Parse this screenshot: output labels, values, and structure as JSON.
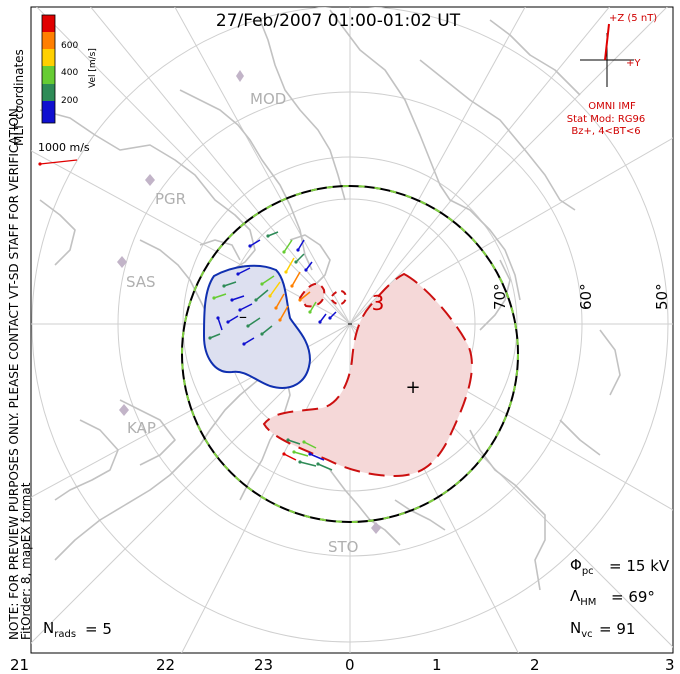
{
  "title": "27/Feb/2007 01:00-01:02 UT",
  "side_note_1": "NOTE: FOR PREVIEW PURPOSES ONLY. PLEASE CONTACT VT-SD STAFF FOR VERIFICATION.",
  "side_note_2": "FitOrder: 8, mapEX format",
  "coord_label": "MLT coordinates",
  "colorbar": {
    "label": "Vel [m/s]",
    "ticks": [
      "200",
      "400",
      "600"
    ],
    "colors": [
      "#1010d0",
      "#2e8b57",
      "#66cc33",
      "#ffd000",
      "#ff7f00",
      "#e00000"
    ]
  },
  "vector_scale_label": "1000 m/s",
  "imf": {
    "z_label": "+Z (5 nT)",
    "y_label": "+Y",
    "source": "OMNI IMF",
    "stat_mod": "Stat Mod: RG96",
    "condition": "Bz+, 4<BT<6"
  },
  "stations": [
    "MOD",
    "PGR",
    "SAS",
    "KAP",
    "STO"
  ],
  "latitude_labels": [
    "70°",
    "60°",
    "50°"
  ],
  "potential_markers": {
    "min": "–",
    "max": "+",
    "contour": "3"
  },
  "stats": {
    "phi_pc": "= 15 kV",
    "lambda_hm": "= 69°",
    "n_vc": "= 91",
    "n_rads": "= 5"
  },
  "mlt_labels": [
    "21",
    "22",
    "23",
    "0",
    "1",
    "2",
    "3"
  ],
  "colors": {
    "negative_fill": "#dde0f0",
    "negative_line": "#1030b0",
    "positive_fill": "#f5d8d8",
    "positive_line": "#cc1010",
    "boundary": "#000000",
    "boundary_dash": "#80d040"
  }
}
